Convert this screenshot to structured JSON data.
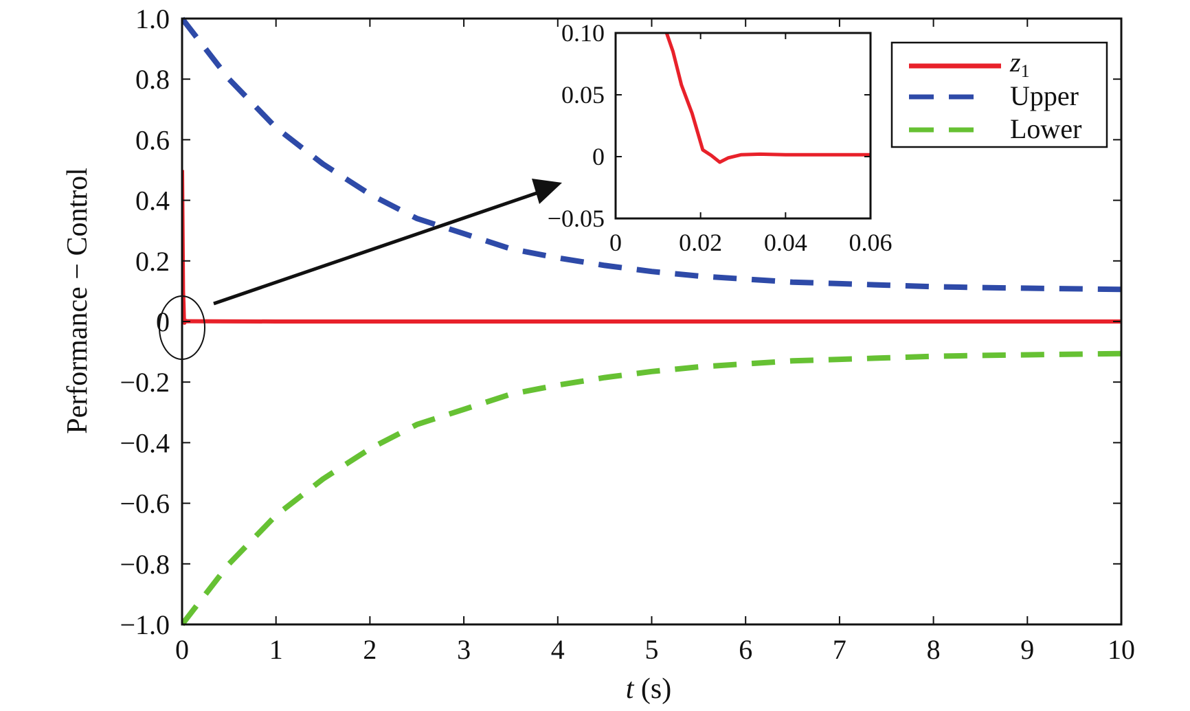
{
  "chart_data": {
    "type": "line",
    "xlabel": "t (s)",
    "xlabel_parts": [
      "t",
      " (s)"
    ],
    "ylabel": "Performance − Control",
    "xlim": [
      0,
      10
    ],
    "ylim": [
      -1.0,
      1.0
    ],
    "xticks": [
      "0",
      "1",
      "2",
      "3",
      "4",
      "5",
      "6",
      "7",
      "8",
      "9",
      "10"
    ],
    "xtick_values": [
      0,
      1,
      2,
      3,
      4,
      5,
      6,
      7,
      8,
      9,
      10
    ],
    "yticks": [
      "1.0",
      "0.8",
      "0.6",
      "0.4",
      "0.2",
      "0",
      "−0.2",
      "−0.4",
      "−0.6",
      "−0.8",
      "−1.0"
    ],
    "ytick_values": [
      1.0,
      0.8,
      0.6,
      0.4,
      0.2,
      0,
      -0.2,
      -0.4,
      -0.6,
      -0.8,
      -1.0
    ],
    "grid": false,
    "legend_position": "top-right",
    "series": [
      {
        "name": "z1",
        "name_base": "z",
        "name_sub": "1",
        "color": "#e8212a",
        "style": "solid",
        "x": [
          0,
          0.01,
          0.015,
          0.02,
          0.025,
          0.03,
          0.04,
          0.05,
          0.06,
          1,
          2,
          3,
          4,
          5,
          6,
          7,
          8,
          9,
          10
        ],
        "y": [
          0.5,
          0.1,
          0.058,
          0.005,
          -0.004,
          0.0015,
          0.002,
          0.001,
          0.001,
          0,
          0,
          0,
          0,
          0,
          0,
          0,
          0,
          0,
          0
        ]
      },
      {
        "name": "Upper",
        "color": "#2e4aa8",
        "style": "dashed",
        "x": [
          0,
          0.5,
          1,
          1.5,
          2,
          2.5,
          3,
          3.5,
          4,
          4.5,
          5,
          5.5,
          6,
          6.5,
          7,
          7.5,
          8,
          8.5,
          9,
          9.5,
          10
        ],
        "y": [
          1.0,
          0.8,
          0.64,
          0.52,
          0.42,
          0.34,
          0.29,
          0.24,
          0.21,
          0.185,
          0.165,
          0.15,
          0.14,
          0.13,
          0.125,
          0.12,
          0.115,
          0.112,
          0.11,
          0.108,
          0.106
        ]
      },
      {
        "name": "Lower",
        "color": "#66c133",
        "style": "dashed",
        "x": [
          0,
          0.5,
          1,
          1.5,
          2,
          2.5,
          3,
          3.5,
          4,
          4.5,
          5,
          5.5,
          6,
          6.5,
          7,
          7.5,
          8,
          8.5,
          9,
          9.5,
          10
        ],
        "y": [
          -1.0,
          -0.8,
          -0.64,
          -0.52,
          -0.42,
          -0.34,
          -0.29,
          -0.24,
          -0.21,
          -0.185,
          -0.165,
          -0.15,
          -0.14,
          -0.13,
          -0.125,
          -0.12,
          -0.115,
          -0.112,
          -0.11,
          -0.108,
          -0.106
        ]
      }
    ],
    "inset": {
      "xlim": [
        0,
        0.06
      ],
      "ylim": [
        -0.05,
        0.1
      ],
      "xticks": [
        "0",
        "0.02",
        "0.04",
        "0.06"
      ],
      "xtick_values": [
        0,
        0.02,
        0.04,
        0.06
      ],
      "yticks": [
        "0.10",
        "0.05",
        "0",
        "−0.05"
      ],
      "ytick_values": [
        0.1,
        0.05,
        0,
        -0.05
      ],
      "series": [
        {
          "name": "z1",
          "color": "#e8212a",
          "x": [
            0.0115,
            0.0135,
            0.0155,
            0.018,
            0.0205,
            0.0225,
            0.0245,
            0.0265,
            0.0295,
            0.034,
            0.04,
            0.05,
            0.06
          ],
          "y": [
            0.105,
            0.085,
            0.058,
            0.035,
            0.0055,
            0.001,
            -0.0045,
            -0.001,
            0.0015,
            0.002,
            0.0015,
            0.0015,
            0.0015
          ]
        }
      ]
    }
  }
}
